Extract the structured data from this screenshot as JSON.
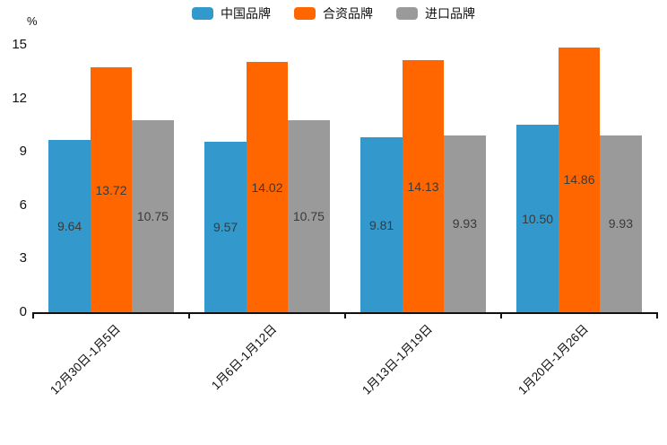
{
  "chart_data": {
    "type": "bar",
    "title": "",
    "xlabel": "",
    "ylabel": "%",
    "ylim": [
      0,
      15
    ],
    "yticks": [
      0,
      3,
      6,
      9,
      12,
      15
    ],
    "grid": false,
    "legend_position": "top-center",
    "value_label_decimals": 2,
    "categories": [
      "12月30日-1月5日",
      "1月6日-1月12日",
      "1月13日-1月19日",
      "1月20日-1月26日"
    ],
    "series": [
      {
        "name": "中国品牌",
        "color": "#3398CB",
        "values": [
          9.64,
          9.57,
          9.81,
          10.5
        ]
      },
      {
        "name": "合资品牌",
        "color": "#FF6600",
        "values": [
          13.72,
          14.02,
          14.13,
          14.86
        ]
      },
      {
        "name": "进口品牌",
        "color": "#9A9A9A",
        "values": [
          10.75,
          10.75,
          9.93,
          9.93
        ]
      }
    ]
  },
  "colors": {
    "axis": "#111111",
    "tick_text": "#111111",
    "value_label_text": "#3a3a3a",
    "background": "#ffffff"
  }
}
